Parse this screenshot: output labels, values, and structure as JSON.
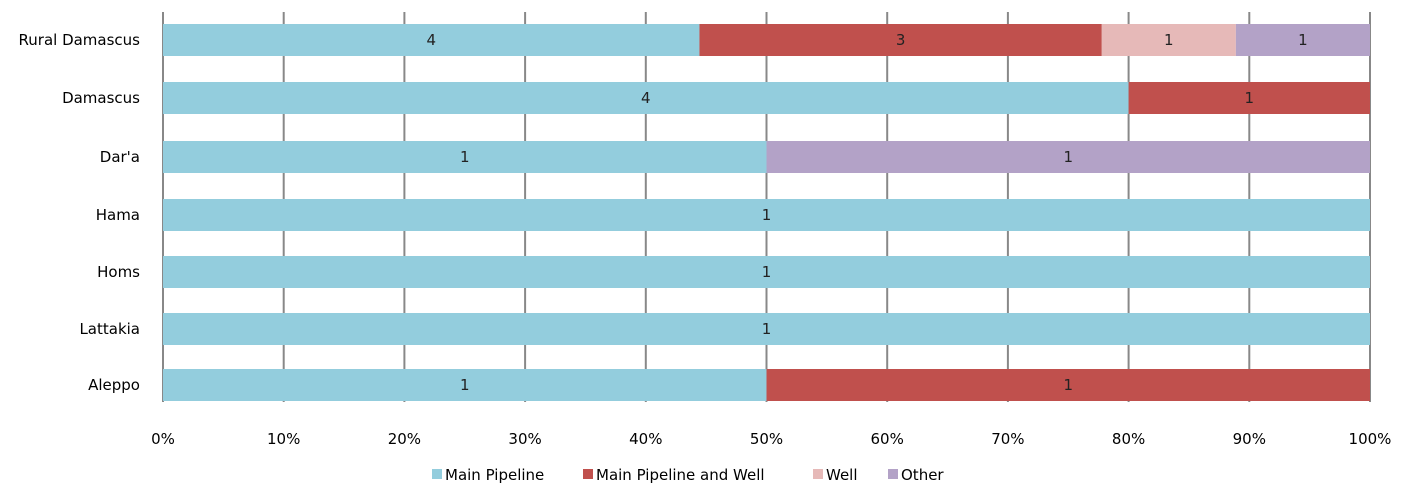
{
  "chart_data": {
    "type": "bar",
    "orientation": "horizontal",
    "stacked": "percent",
    "categories": [
      "Rural Damascus",
      "Damascus",
      "Dar'a",
      "Hama",
      "Homs",
      "Lattakia",
      "Aleppo"
    ],
    "series": [
      {
        "name": "Main Pipeline",
        "color": "#93cddd",
        "values": [
          4,
          4,
          1,
          1,
          1,
          1,
          1
        ]
      },
      {
        "name": "Main Pipeline and Well",
        "color": "#c0504d",
        "values": [
          3,
          1,
          0,
          0,
          0,
          0,
          1
        ]
      },
      {
        "name": "Well",
        "color": "#e6b9b8",
        "values": [
          1,
          0,
          0,
          0,
          0,
          0,
          0
        ]
      },
      {
        "name": "Other",
        "color": "#b3a2c7",
        "values": [
          1,
          0,
          1,
          0,
          0,
          0,
          0
        ]
      }
    ],
    "x_ticks": [
      "0%",
      "10%",
      "20%",
      "30%",
      "40%",
      "50%",
      "60%",
      "70%",
      "80%",
      "90%",
      "100%"
    ],
    "xlim": [
      0,
      100
    ],
    "grid": "vertical",
    "legend_position": "bottom"
  }
}
